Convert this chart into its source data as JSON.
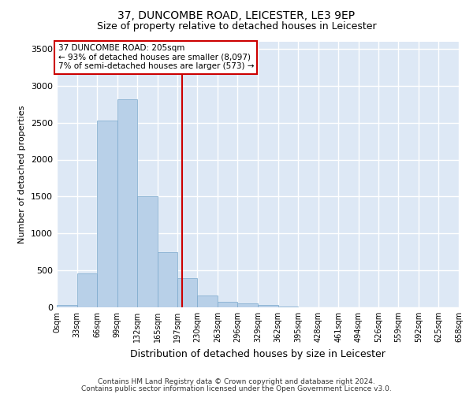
{
  "title": "37, DUNCOMBE ROAD, LEICESTER, LE3 9EP",
  "subtitle": "Size of property relative to detached houses in Leicester",
  "xlabel": "Distribution of detached houses by size in Leicester",
  "ylabel": "Number of detached properties",
  "property_label": "37 DUNCOMBE ROAD: 205sqm",
  "annotation_line1": "← 93% of detached houses are smaller (8,097)",
  "annotation_line2": "7% of semi-detached houses are larger (573) →",
  "footer_line1": "Contains HM Land Registry data © Crown copyright and database right 2024.",
  "footer_line2": "Contains public sector information licensed under the Open Government Licence v3.0.",
  "bin_edges": [
    0,
    33,
    66,
    99,
    132,
    165,
    197,
    230,
    263,
    296,
    329,
    362,
    395,
    428,
    461,
    494,
    526,
    559,
    592,
    625,
    658
  ],
  "bin_labels": [
    "0sqm",
    "33sqm",
    "66sqm",
    "99sqm",
    "132sqm",
    "165sqm",
    "197sqm",
    "230sqm",
    "263sqm",
    "296sqm",
    "329sqm",
    "362sqm",
    "395sqm",
    "428sqm",
    "461sqm",
    "494sqm",
    "526sqm",
    "559sqm",
    "592sqm",
    "625sqm",
    "658sqm"
  ],
  "counts": [
    30,
    460,
    2530,
    2820,
    1500,
    750,
    390,
    155,
    80,
    55,
    30,
    10,
    5,
    5,
    5,
    0,
    0,
    0,
    0,
    0
  ],
  "bar_color": "#b8d0e8",
  "bar_edge_color": "#7aa8cc",
  "vline_color": "#cc0000",
  "vline_x": 205,
  "annotation_box_color": "#cc0000",
  "bg_color": "#dde8f5",
  "grid_color": "#ffffff",
  "ylim": [
    0,
    3600
  ],
  "yticks": [
    0,
    500,
    1000,
    1500,
    2000,
    2500,
    3000,
    3500
  ],
  "title_fontsize": 10,
  "subtitle_fontsize": 9,
  "ylabel_fontsize": 8,
  "xlabel_fontsize": 9,
  "ytick_fontsize": 8,
  "xtick_fontsize": 7,
  "ann_fontsize": 7.5,
  "footer_fontsize": 6.5
}
